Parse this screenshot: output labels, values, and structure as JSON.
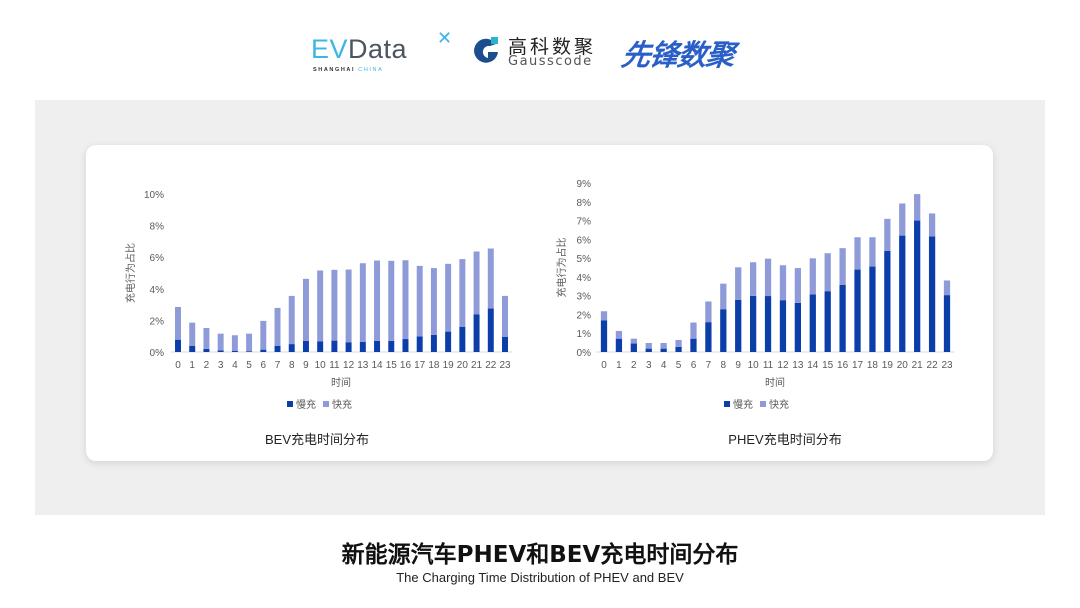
{
  "logos": {
    "evdata": {
      "ev": "EV",
      "rest": "Data",
      "sub_a": "SHANGHAI ",
      "sub_b": "CHINA"
    },
    "gausscode": {
      "cn": "高科数聚",
      "en": "Gausscode"
    },
    "xianfeng": "先锋数聚"
  },
  "title": "新能源汽车PHEV和BEV充电时间分布",
  "subtitle": "The Charging Time Distribution of PHEV and BEV",
  "colors": {
    "slow": "#0b3ea8",
    "fast": "#8f9bd8",
    "panel": "#efefef"
  },
  "chart_data": [
    {
      "type": "bar",
      "stacked": true,
      "caption": "BEV充电时间分布",
      "xlabel": "时间",
      "ylabel": "充电行为占比",
      "ylim": [
        0,
        10
      ],
      "yticks": [
        "0%",
        "2%",
        "4%",
        "6%",
        "8%",
        "10%"
      ],
      "categories": [
        "0",
        "1",
        "2",
        "3",
        "4",
        "5",
        "6",
        "7",
        "8",
        "9",
        "10",
        "11",
        "12",
        "13",
        "14",
        "15",
        "16",
        "17",
        "18",
        "19",
        "20",
        "21",
        "22",
        "23"
      ],
      "legend": "bottom",
      "series": [
        {
          "name": "慢充",
          "values": [
            0.78,
            0.38,
            0.2,
            0.1,
            0.08,
            0.05,
            0.15,
            0.38,
            0.5,
            0.7,
            0.68,
            0.72,
            0.62,
            0.64,
            0.7,
            0.7,
            0.82,
            0.99,
            1.08,
            1.29,
            1.6,
            2.39,
            2.75,
            0.95
          ]
        },
        {
          "name": "快充",
          "values": [
            2.07,
            1.48,
            1.32,
            1.06,
            0.98,
            1.11,
            1.82,
            2.41,
            3.05,
            3.93,
            4.48,
            4.48,
            4.6,
            4.98,
            5.09,
            5.07,
            4.99,
            4.46,
            4.23,
            4.29,
            4.28,
            3.97,
            3.8,
            2.6
          ]
        }
      ]
    },
    {
      "type": "bar",
      "stacked": true,
      "caption": "PHEV充电时间分布",
      "xlabel": "时间",
      "ylabel": "充电行为占比",
      "ylim": [
        0,
        9
      ],
      "yticks": [
        "0%",
        "1%",
        "2%",
        "3%",
        "4%",
        "5%",
        "6%",
        "7%",
        "8%",
        "9%"
      ],
      "categories": [
        "0",
        "1",
        "2",
        "3",
        "4",
        "5",
        "6",
        "7",
        "8",
        "9",
        "10",
        "11",
        "12",
        "13",
        "14",
        "15",
        "16",
        "17",
        "18",
        "19",
        "20",
        "21",
        "22",
        "23"
      ],
      "legend": "bottom",
      "series": [
        {
          "name": "慢充",
          "values": [
            1.69,
            0.71,
            0.45,
            0.18,
            0.18,
            0.27,
            0.71,
            1.59,
            2.28,
            2.78,
            2.99,
            2.98,
            2.76,
            2.62,
            3.07,
            3.24,
            3.58,
            4.39,
            4.55,
            5.38,
            6.2,
            7.0,
            6.15,
            3.03
          ]
        },
        {
          "name": "快充",
          "values": [
            0.48,
            0.41,
            0.26,
            0.3,
            0.3,
            0.37,
            0.86,
            1.1,
            1.36,
            1.73,
            1.79,
            1.99,
            1.86,
            1.85,
            1.92,
            2.02,
            1.95,
            1.72,
            1.56,
            1.71,
            1.71,
            1.41,
            1.23,
            0.78
          ]
        }
      ]
    }
  ]
}
